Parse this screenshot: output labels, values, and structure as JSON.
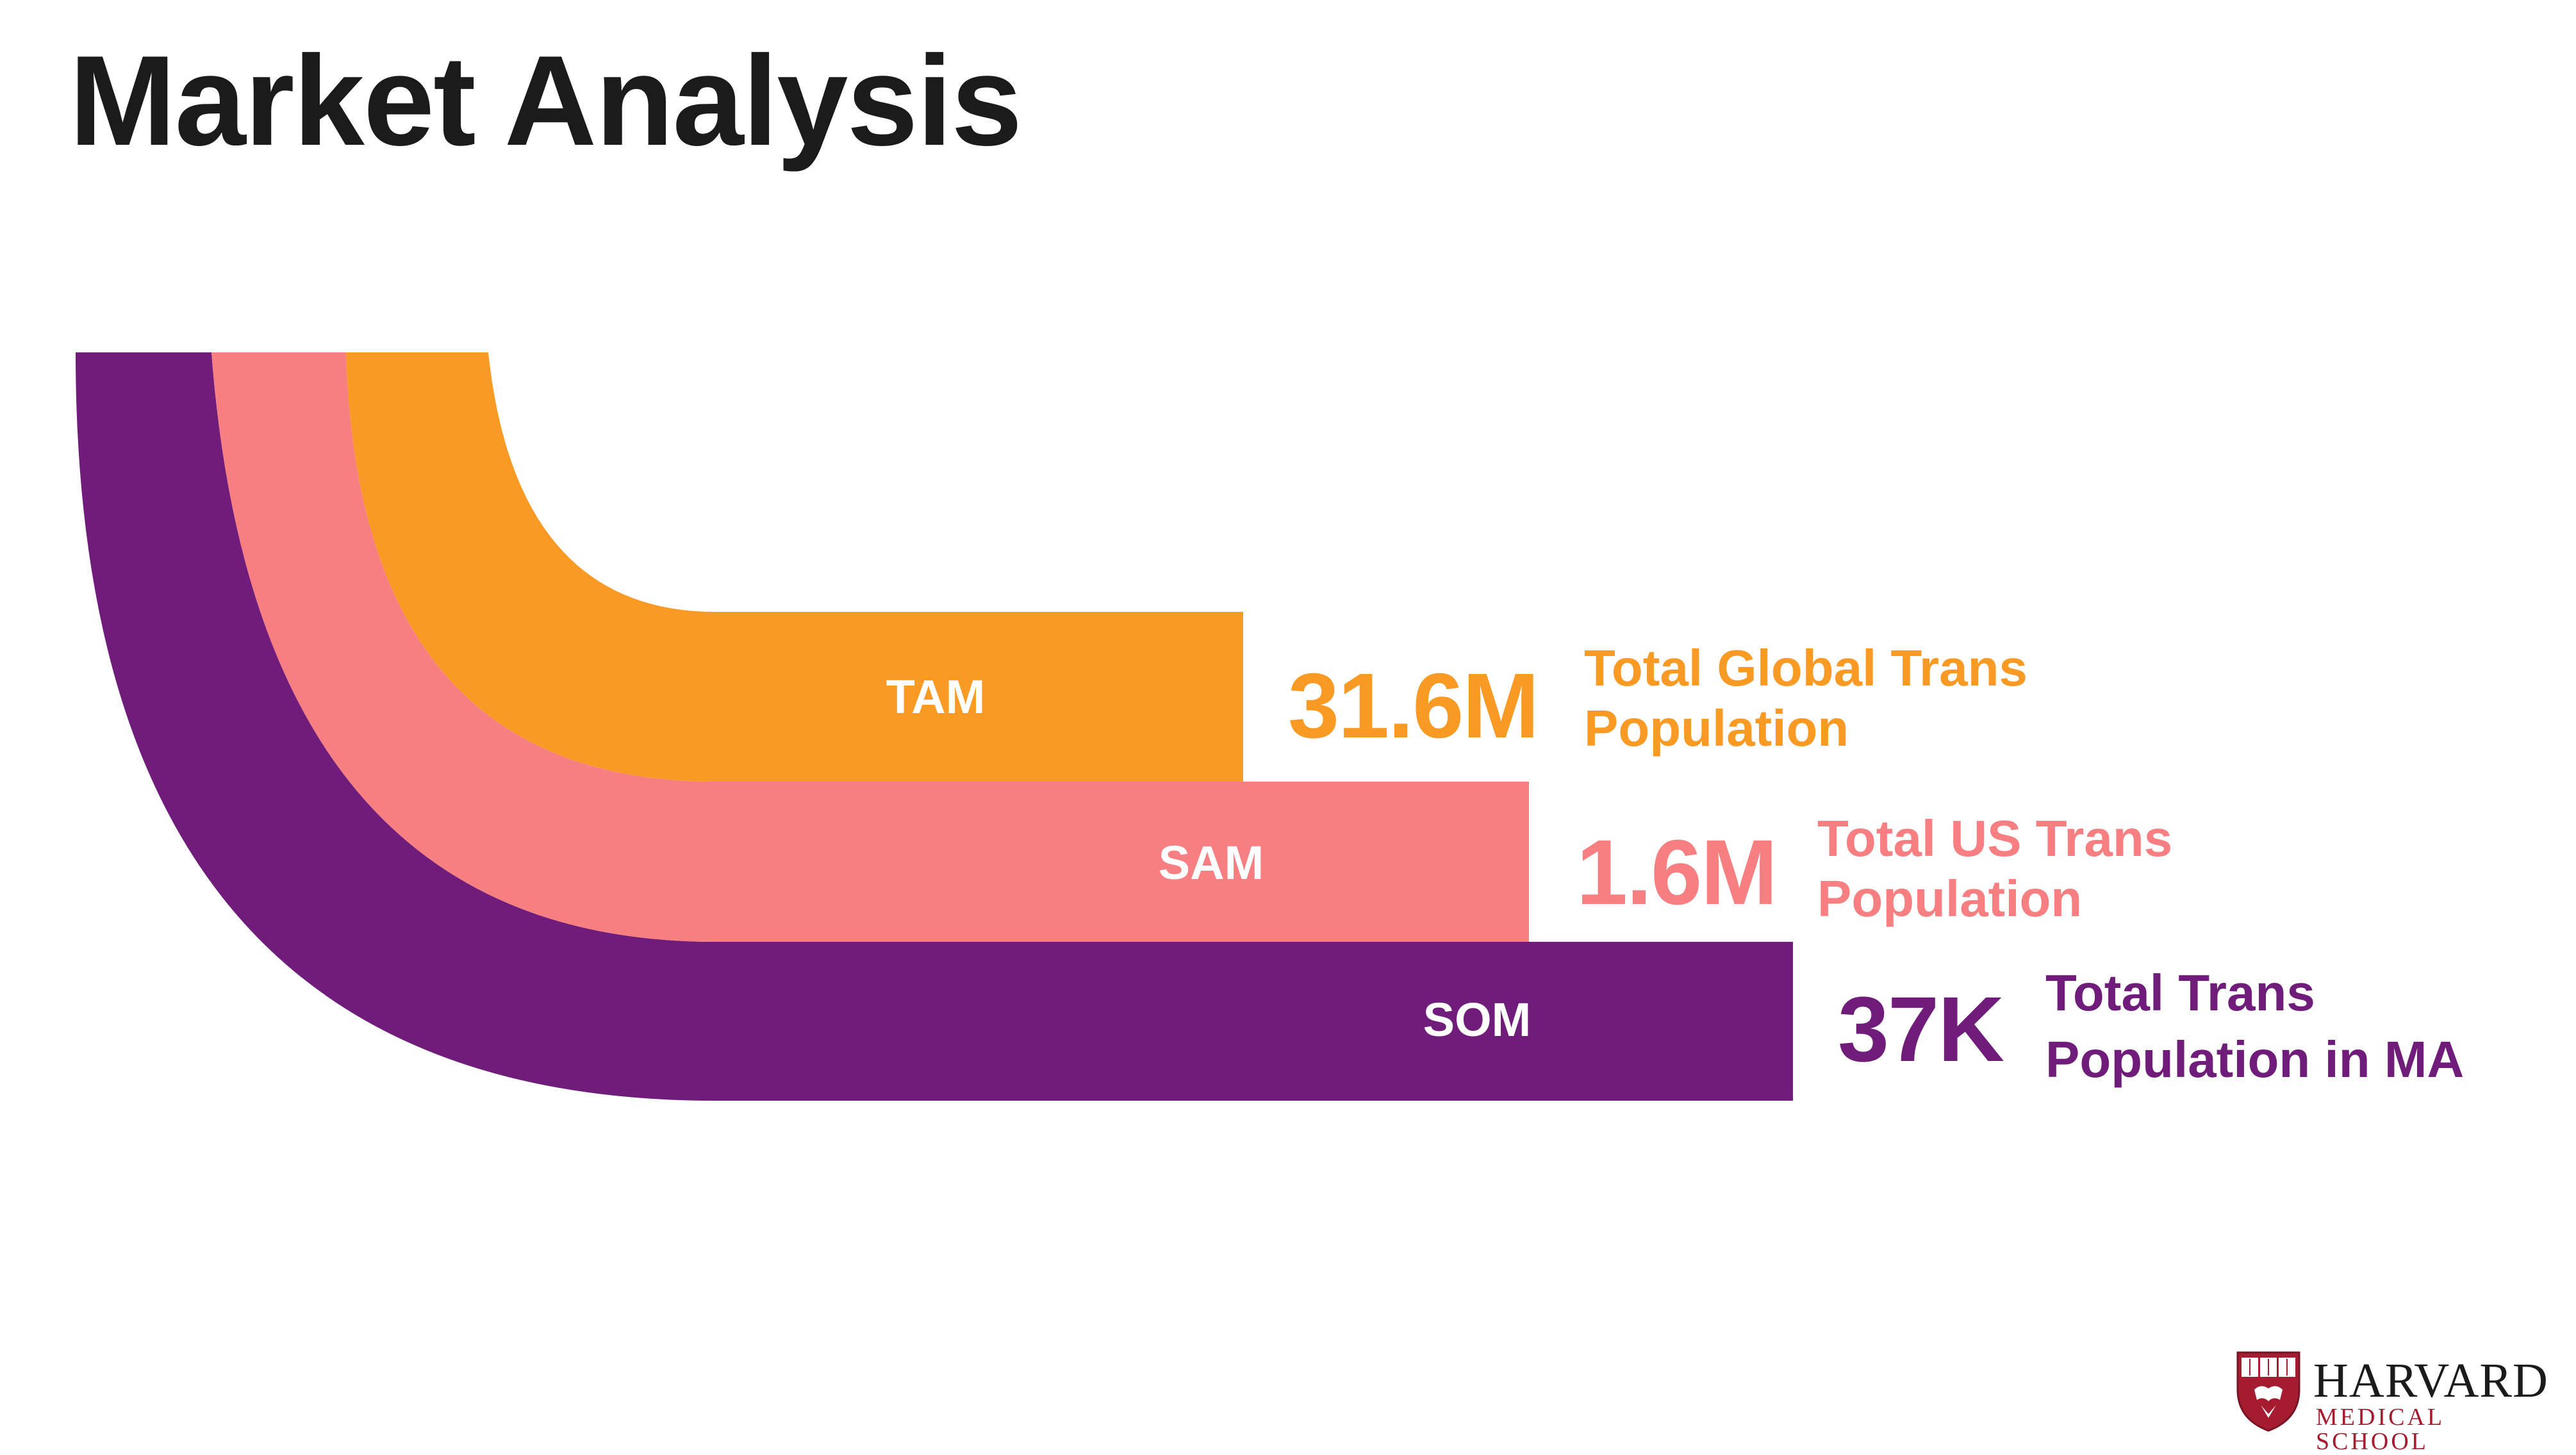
{
  "title": "Market Analysis",
  "tiers": [
    {
      "key": "tam",
      "label": "TAM",
      "value": "31.6M",
      "description_lines": [
        "Total Global Trans",
        "Population"
      ],
      "color": "#f99a25"
    },
    {
      "key": "sam",
      "label": "SAM",
      "value": "1.6M",
      "description_lines": [
        "Total US Trans",
        "Population"
      ],
      "color": "#f77f81"
    },
    {
      "key": "som",
      "label": "SOM",
      "value": "37K",
      "description_lines": [
        "Total Trans",
        "Population in MA"
      ],
      "color": "#701c7b"
    }
  ],
  "logo": {
    "name": "HARVARD",
    "subtitle": "MEDICAL SCHOOL",
    "shield_icon": "harvard-veritas-shield-icon",
    "brand_color": "#a51c30"
  }
}
